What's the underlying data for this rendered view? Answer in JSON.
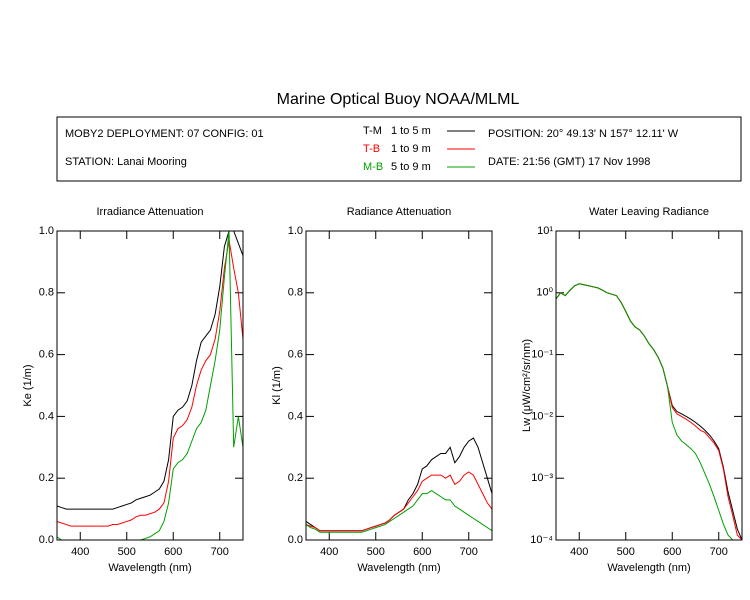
{
  "header": {
    "title": "Marine Optical Buoy NOAA/MLML",
    "deployment": "MOBY2 DEPLOYMENT: 07 CONFIG: 01",
    "station": "STATION: Lanai Mooring",
    "position": "POSITION: 20° 49.13' N   157° 12.11' W",
    "date": "DATE: 21:56 (GMT) 17 Nov 1998",
    "depths": [
      "1 to 5  m",
      "1 to 9  m",
      "5 to 9  m"
    ]
  },
  "chart_data": [
    {
      "type": "line",
      "title": "Irradiance Attenuation",
      "xlabel": "Wavelength (nm)",
      "ylabel": "Ke  (1/m)",
      "xlim": [
        350,
        750
      ],
      "xticks": [
        400,
        500,
        600,
        700
      ],
      "ylim": [
        0,
        1
      ],
      "yticks": [
        {
          "value": 0,
          "label": "0.0"
        },
        0.2,
        0.4,
        0.6,
        0.8,
        {
          "value": 1,
          "label": "1.0"
        }
      ],
      "x": [
        350,
        360,
        370,
        380,
        390,
        400,
        410,
        420,
        430,
        440,
        450,
        460,
        470,
        480,
        490,
        500,
        510,
        520,
        530,
        540,
        550,
        560,
        570,
        580,
        590,
        600,
        610,
        620,
        630,
        640,
        650,
        660,
        670,
        680,
        690,
        700,
        710,
        720,
        730,
        740,
        750
      ],
      "series": [
        {
          "name": "T-M",
          "color": "#000000",
          "values": [
            0.11,
            0.105,
            0.1,
            0.1,
            0.1,
            0.1,
            0.1,
            0.1,
            0.1,
            0.1,
            0.1,
            0.1,
            0.1,
            0.105,
            0.11,
            0.115,
            0.12,
            0.13,
            0.135,
            0.14,
            0.145,
            0.155,
            0.165,
            0.19,
            0.26,
            0.4,
            0.42,
            0.43,
            0.45,
            0.5,
            0.58,
            0.64,
            0.66,
            0.68,
            0.73,
            0.82,
            0.95,
            1.0,
            1.0,
            0.96,
            0.92
          ]
        },
        {
          "name": "T-B",
          "color": "#ff0000",
          "values": [
            0.06,
            0.055,
            0.05,
            0.045,
            0.045,
            0.045,
            0.045,
            0.045,
            0.045,
            0.045,
            0.045,
            0.045,
            0.05,
            0.05,
            0.055,
            0.06,
            0.065,
            0.075,
            0.08,
            0.08,
            0.085,
            0.09,
            0.1,
            0.12,
            0.19,
            0.33,
            0.36,
            0.37,
            0.39,
            0.43,
            0.5,
            0.55,
            0.58,
            0.6,
            0.65,
            0.74,
            0.88,
            0.97,
            0.88,
            0.8,
            0.65
          ]
        },
        {
          "name": "M-B",
          "color": "#00a000",
          "values": [
            0.01,
            0,
            0,
            0,
            0,
            0,
            0,
            0,
            0,
            0,
            0,
            0,
            0,
            0,
            0,
            0,
            0,
            0,
            0,
            0.005,
            0.01,
            0.02,
            0.03,
            0.06,
            0.12,
            0.23,
            0.25,
            0.26,
            0.28,
            0.32,
            0.36,
            0.38,
            0.42,
            0.5,
            0.58,
            0.68,
            0.85,
            1.0,
            0.3,
            0.4,
            0.3
          ]
        }
      ]
    },
    {
      "type": "line",
      "title": "Radiance Attenuation",
      "xlabel": "Wavelength (nm)",
      "ylabel": "Kl  (1/m)",
      "xlim": [
        350,
        750
      ],
      "xticks": [
        400,
        500,
        600,
        700
      ],
      "ylim": [
        0,
        1
      ],
      "yticks": [
        {
          "value": 0,
          "label": "0.0"
        },
        0.2,
        0.4,
        0.6,
        0.8,
        {
          "value": 1,
          "label": "1.0"
        }
      ],
      "x": [
        350,
        360,
        370,
        380,
        390,
        400,
        410,
        420,
        430,
        440,
        450,
        460,
        470,
        480,
        490,
        500,
        510,
        520,
        530,
        540,
        550,
        560,
        570,
        580,
        590,
        600,
        610,
        620,
        630,
        640,
        650,
        660,
        670,
        680,
        690,
        700,
        710,
        720,
        730,
        740,
        750
      ],
      "series": [
        {
          "color": "#000000",
          "values": [
            0.06,
            0.05,
            0.04,
            0.03,
            0.03,
            0.03,
            0.03,
            0.03,
            0.03,
            0.03,
            0.03,
            0.03,
            0.03,
            0.035,
            0.04,
            0.045,
            0.05,
            0.055,
            0.065,
            0.08,
            0.09,
            0.1,
            0.13,
            0.15,
            0.18,
            0.23,
            0.24,
            0.26,
            0.27,
            0.28,
            0.28,
            0.3,
            0.25,
            0.27,
            0.3,
            0.32,
            0.33,
            0.3,
            0.25,
            0.2,
            0.15
          ]
        },
        {
          "color": "#ff0000",
          "values": [
            0.05,
            0.045,
            0.04,
            0.03,
            0.03,
            0.03,
            0.03,
            0.03,
            0.03,
            0.03,
            0.03,
            0.03,
            0.03,
            0.035,
            0.04,
            0.045,
            0.05,
            0.055,
            0.065,
            0.08,
            0.09,
            0.1,
            0.12,
            0.14,
            0.16,
            0.19,
            0.2,
            0.21,
            0.21,
            0.21,
            0.2,
            0.21,
            0.18,
            0.19,
            0.21,
            0.22,
            0.21,
            0.18,
            0.15,
            0.12,
            0.1
          ]
        },
        {
          "color": "#00a000",
          "values": [
            0.05,
            0.04,
            0.035,
            0.025,
            0.025,
            0.025,
            0.025,
            0.025,
            0.025,
            0.025,
            0.025,
            0.025,
            0.025,
            0.03,
            0.035,
            0.04,
            0.045,
            0.05,
            0.06,
            0.07,
            0.08,
            0.09,
            0.1,
            0.11,
            0.13,
            0.15,
            0.15,
            0.16,
            0.15,
            0.14,
            0.13,
            0.13,
            0.11,
            0.1,
            0.09,
            0.08,
            0.07,
            0.06,
            0.05,
            0.04,
            0.03
          ]
        }
      ]
    },
    {
      "type": "line",
      "title": "Water Leaving Radiance",
      "xlabel": "Wavelength (nm)",
      "ylabel": "Lw  (μW/cm²/sr/nm)",
      "xlim": [
        350,
        750
      ],
      "xticks": [
        400,
        500,
        600,
        700
      ],
      "log_y": true,
      "ylim": [
        0.0001,
        10
      ],
      "yticks": [
        {
          "value": 0.0001,
          "label": "10⁻⁴"
        },
        {
          "value": 0.001,
          "label": "10⁻³"
        },
        {
          "value": 0.01,
          "label": "10⁻²"
        },
        {
          "value": 0.1,
          "label": "10⁻¹"
        },
        {
          "value": 1,
          "label": "10⁰"
        },
        {
          "value": 10,
          "label": "10¹"
        }
      ],
      "x": [
        350,
        360,
        370,
        380,
        390,
        400,
        410,
        420,
        430,
        440,
        450,
        460,
        470,
        480,
        490,
        500,
        510,
        520,
        530,
        540,
        550,
        560,
        570,
        580,
        590,
        600,
        610,
        620,
        630,
        640,
        650,
        660,
        670,
        680,
        690,
        700,
        710,
        720,
        730,
        740,
        750
      ],
      "series": [
        {
          "color": "#000000",
          "values": [
            0.8,
            1.0,
            0.9,
            1.1,
            1.3,
            1.4,
            1.35,
            1.3,
            1.25,
            1.2,
            1.1,
            1.0,
            0.95,
            0.9,
            0.7,
            0.5,
            0.35,
            0.28,
            0.25,
            0.2,
            0.15,
            0.12,
            0.09,
            0.06,
            0.03,
            0.015,
            0.012,
            0.011,
            0.01,
            0.009,
            0.008,
            0.007,
            0.006,
            0.005,
            0.004,
            0.003,
            0.0015,
            0.0006,
            0.0003,
            0.00015,
            0.0001
          ]
        },
        {
          "color": "#ff0000",
          "values": [
            0.8,
            1.0,
            0.9,
            1.1,
            1.3,
            1.4,
            1.35,
            1.3,
            1.25,
            1.2,
            1.1,
            1.0,
            0.95,
            0.9,
            0.7,
            0.5,
            0.35,
            0.28,
            0.25,
            0.2,
            0.15,
            0.12,
            0.09,
            0.06,
            0.03,
            0.014,
            0.011,
            0.01,
            0.009,
            0.008,
            0.007,
            0.006,
            0.0055,
            0.0045,
            0.0037,
            0.0028,
            0.0014,
            0.0005,
            0.00025,
            0.00012,
            0.0001
          ]
        },
        {
          "color": "#00a000",
          "values": [
            0.8,
            1.0,
            0.9,
            1.1,
            1.3,
            1.4,
            1.35,
            1.3,
            1.25,
            1.2,
            1.1,
            1.0,
            0.95,
            0.9,
            0.7,
            0.5,
            0.35,
            0.28,
            0.25,
            0.2,
            0.15,
            0.12,
            0.09,
            0.06,
            0.03,
            0.008,
            0.005,
            0.004,
            0.0035,
            0.003,
            0.0025,
            0.0018,
            0.0012,
            0.0008,
            0.0005,
            0.0003,
            0.00018,
            0.00012,
            0.0001,
            0.0001,
            0.0001
          ]
        }
      ]
    }
  ]
}
